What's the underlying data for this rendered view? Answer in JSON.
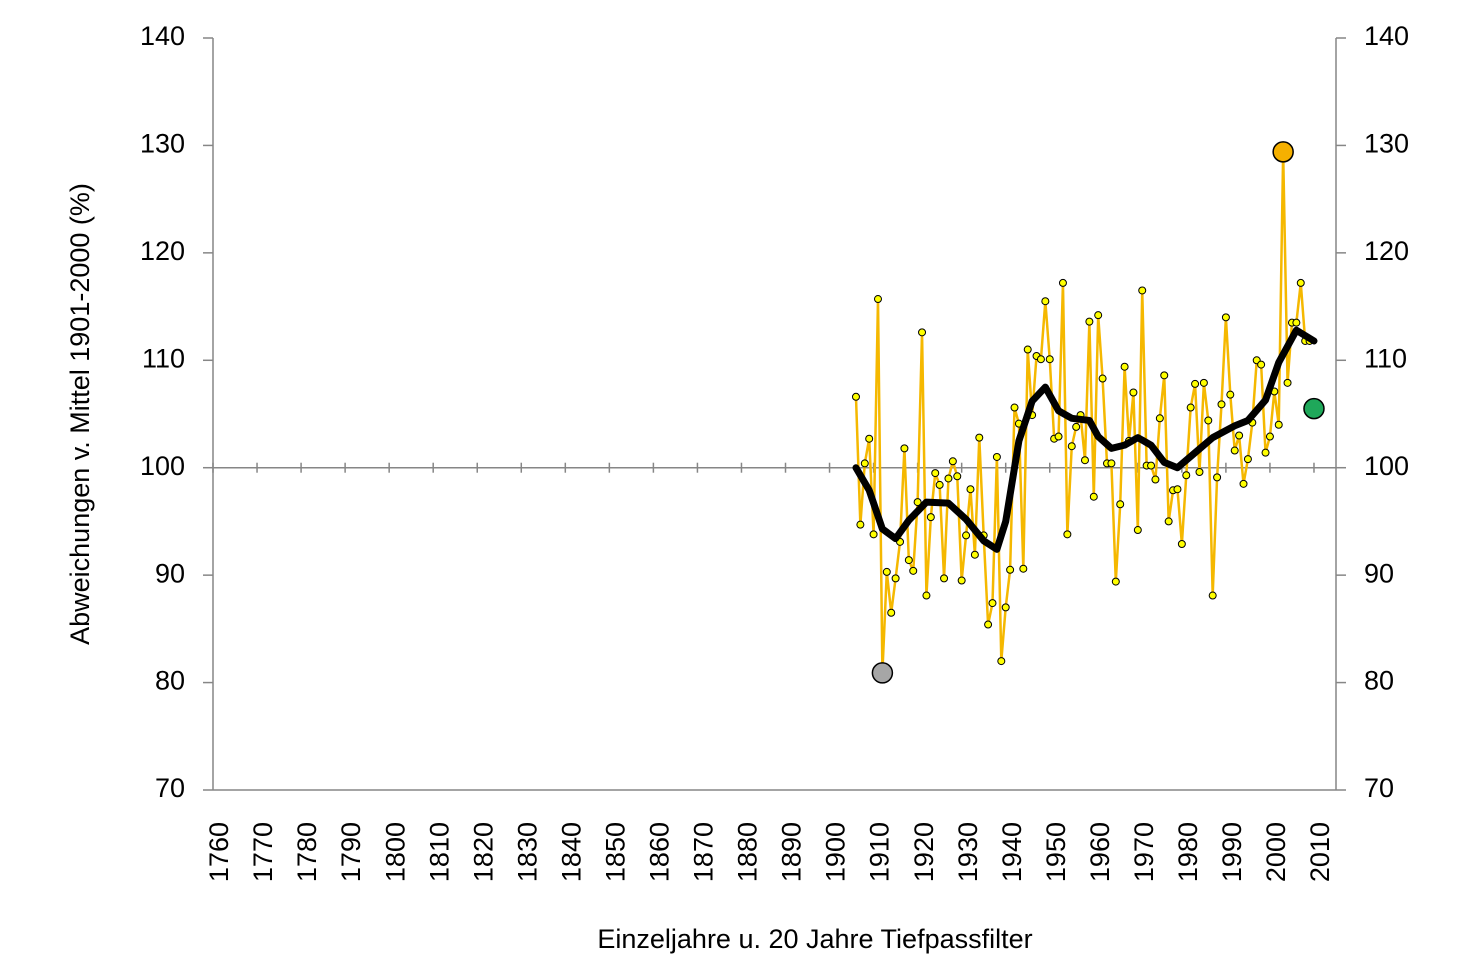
{
  "chart_data": {
    "type": "line",
    "y_axis_label": "Abweichungen v. Mittel 1901-2000 (%)",
    "x_axis_label": "Einzeljahre u. 20 Jahre Tiefpassfilter",
    "xlim": [
      1760,
      2015
    ],
    "xticks": [
      1760,
      1770,
      1780,
      1790,
      1800,
      1810,
      1820,
      1830,
      1840,
      1850,
      1860,
      1870,
      1880,
      1890,
      1900,
      1910,
      1920,
      1930,
      1940,
      1950,
      1960,
      1970,
      1980,
      1990,
      2000,
      2010
    ],
    "ylim": [
      70,
      140
    ],
    "yticks": [
      70,
      80,
      90,
      100,
      110,
      120,
      130,
      140
    ],
    "y2lim": [
      70,
      140
    ],
    "y2ticks": [
      70,
      80,
      90,
      100,
      110,
      120,
      130,
      140
    ],
    "x_axis_crossing": 100,
    "series": [
      {
        "color": "#f5b800",
        "marker": "small",
        "marker_fill": "#ffff00",
        "x": [
          1906,
          1907,
          1908,
          1909,
          1910,
          1911,
          1912,
          1913,
          1914,
          1915,
          1916,
          1917,
          1918,
          1919,
          1920,
          1921,
          1922,
          1923,
          1924,
          1925,
          1926,
          1927,
          1928,
          1929,
          1930,
          1931,
          1932,
          1933,
          1934,
          1935,
          1936,
          1937,
          1938,
          1939,
          1940,
          1941,
          1942,
          1943,
          1944,
          1945,
          1946,
          1947,
          1948,
          1949,
          1950,
          1951,
          1952,
          1953,
          1954,
          1955,
          1956,
          1957,
          1958,
          1959,
          1960,
          1961,
          1962,
          1963,
          1964,
          1965,
          1966,
          1967,
          1968,
          1969,
          1970,
          1971,
          1972,
          1973,
          1974,
          1975,
          1976,
          1977,
          1978,
          1979,
          1980,
          1981,
          1982,
          1983,
          1984,
          1985,
          1986,
          1987,
          1988,
          1989,
          1990,
          1991,
          1992,
          1993,
          1994,
          1995,
          1996,
          1997,
          1998,
          1999,
          2000,
          2001,
          2002,
          2003,
          2004,
          2005,
          2006,
          2007,
          2008,
          2009
        ],
        "values": [
          106.6,
          94.7,
          100.4,
          102.7,
          93.8,
          115.7,
          80.9,
          90.3,
          86.5,
          89.7,
          93.1,
          101.8,
          91.4,
          90.4,
          96.8,
          112.6,
          88.1,
          95.4,
          99.5,
          98.4,
          89.7,
          99.0,
          100.6,
          99.2,
          89.5,
          93.7,
          98.0,
          91.9,
          102.8,
          93.7,
          85.4,
          87.4,
          101.0,
          82.0,
          87.0,
          90.5,
          105.6,
          104.1,
          90.6,
          111.0,
          104.9,
          110.4,
          110.1,
          115.5,
          110.1,
          102.7,
          102.9,
          117.2,
          93.8,
          102.0,
          103.8,
          104.9,
          100.7,
          113.6,
          97.3,
          114.2,
          108.3,
          100.4,
          100.4,
          89.4,
          96.6,
          109.4,
          102.5,
          107.0,
          94.2,
          116.5,
          100.2,
          100.2,
          98.9,
          104.6,
          108.6,
          95.0,
          97.9,
          98.0,
          92.9,
          99.3,
          105.6,
          107.8,
          99.6,
          107.9,
          104.4,
          88.1,
          99.1,
          105.9,
          114.0,
          106.8,
          101.6,
          103.0,
          98.5,
          100.8,
          104.2,
          110.0,
          109.6,
          101.4,
          102.9,
          107.1,
          104.0,
          129.4,
          107.9,
          113.5,
          113.5,
          117.2,
          111.8,
          111.8
        ]
      },
      {
        "color": "#000000",
        "marker": "none",
        "width": 7,
        "x": [
          1906,
          1909,
          1912,
          1915,
          1918,
          1922,
          1927,
          1931,
          1935,
          1938,
          1940,
          1943,
          1946,
          1949,
          1952,
          1955,
          1959,
          1961,
          1964,
          1967,
          1970,
          1973,
          1976,
          1979,
          1983,
          1987,
          1992,
          1995,
          1999,
          2002,
          2006,
          2010
        ],
        "values": [
          100.0,
          97.9,
          94.3,
          93.4,
          95.1,
          96.8,
          96.7,
          95.2,
          93.2,
          92.4,
          95.0,
          102.5,
          106.2,
          107.5,
          105.3,
          104.6,
          104.4,
          102.9,
          101.8,
          102.1,
          102.8,
          102.1,
          100.5,
          100.0,
          101.4,
          102.8,
          103.9,
          104.4,
          106.3,
          109.8,
          112.8,
          111.8
        ]
      },
      {
        "color": "#000000",
        "marker": "big",
        "marker_fill": "#a6a6a6",
        "x": [
          1912
        ],
        "values": [
          80.9
        ]
      },
      {
        "color": "#000000",
        "marker": "big",
        "marker_fill": "#f5b000",
        "x": [
          2003
        ],
        "values": [
          129.4
        ]
      },
      {
        "color": "#000000",
        "marker": "big",
        "marker_fill": "#1fa85a",
        "x": [
          2010
        ],
        "values": [
          105.5
        ]
      }
    ]
  }
}
